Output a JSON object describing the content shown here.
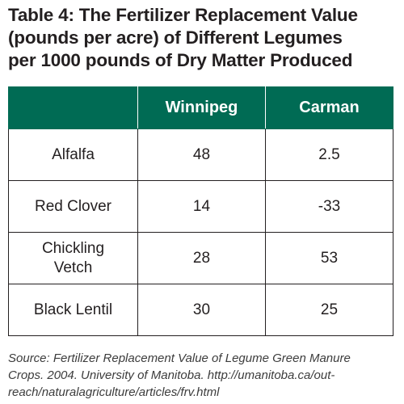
{
  "title": {
    "lines": [
      "Table 4: The Fertilizer Replacement Value",
      "(pounds per acre) of Different Legumes",
      "per 1000 pounds of Dry Matter Produced"
    ]
  },
  "table": {
    "headers": [
      "",
      "Winnipeg",
      "Carman"
    ],
    "rows": [
      {
        "name_lines": [
          "Alfalfa"
        ],
        "winnipeg": "48",
        "carman": "2.5"
      },
      {
        "name_lines": [
          "Red Clover"
        ],
        "winnipeg": "14",
        "carman": "-33"
      },
      {
        "name_lines": [
          "Chickling",
          "Vetch"
        ],
        "winnipeg": "28",
        "carman": "53"
      },
      {
        "name_lines": [
          "Black Lentil"
        ],
        "winnipeg": "30",
        "carman": "25"
      }
    ]
  },
  "source": {
    "lines": [
      "Source: Fertilizer Replacement Value of Legume Green Manure",
      "Crops. 2004. University of Manitoba. http://umanitoba.ca/out-",
      "reach/naturalagriculture/articles/frv.html"
    ]
  },
  "colors": {
    "header_bg": "#006b54",
    "header_text": "#ffffff",
    "text": "#231f20"
  }
}
